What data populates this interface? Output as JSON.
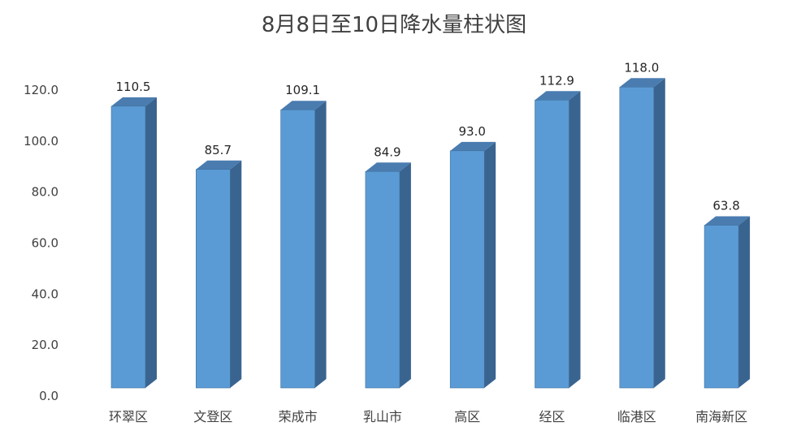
{
  "chart_data": {
    "type": "bar",
    "title": "8月8日至10日降水量柱状图",
    "categories": [
      "环翠区",
      "文登区",
      "荣成市",
      "乳山市",
      "高区",
      "经区",
      "临港区",
      "南海新区"
    ],
    "values": [
      110.5,
      85.7,
      109.1,
      84.9,
      93.0,
      112.9,
      118.0,
      63.8
    ],
    "data_labels": [
      "110.5",
      "85.7",
      "109.1",
      "84.9",
      "93.0",
      "112.9",
      "118.0",
      "63.8"
    ],
    "y_ticks": [
      "0.0",
      "20.0",
      "40.0",
      "60.0",
      "80.0",
      "100.0",
      "120.0"
    ],
    "ylim": [
      0,
      120
    ],
    "xlabel": "",
    "ylabel": "",
    "grid": false,
    "legend": "none",
    "style": "3d-column",
    "colors": {
      "front": "#5B9BD5",
      "side": "#3A6490",
      "top": "#4A7CB0",
      "edge": "#41719C"
    }
  }
}
